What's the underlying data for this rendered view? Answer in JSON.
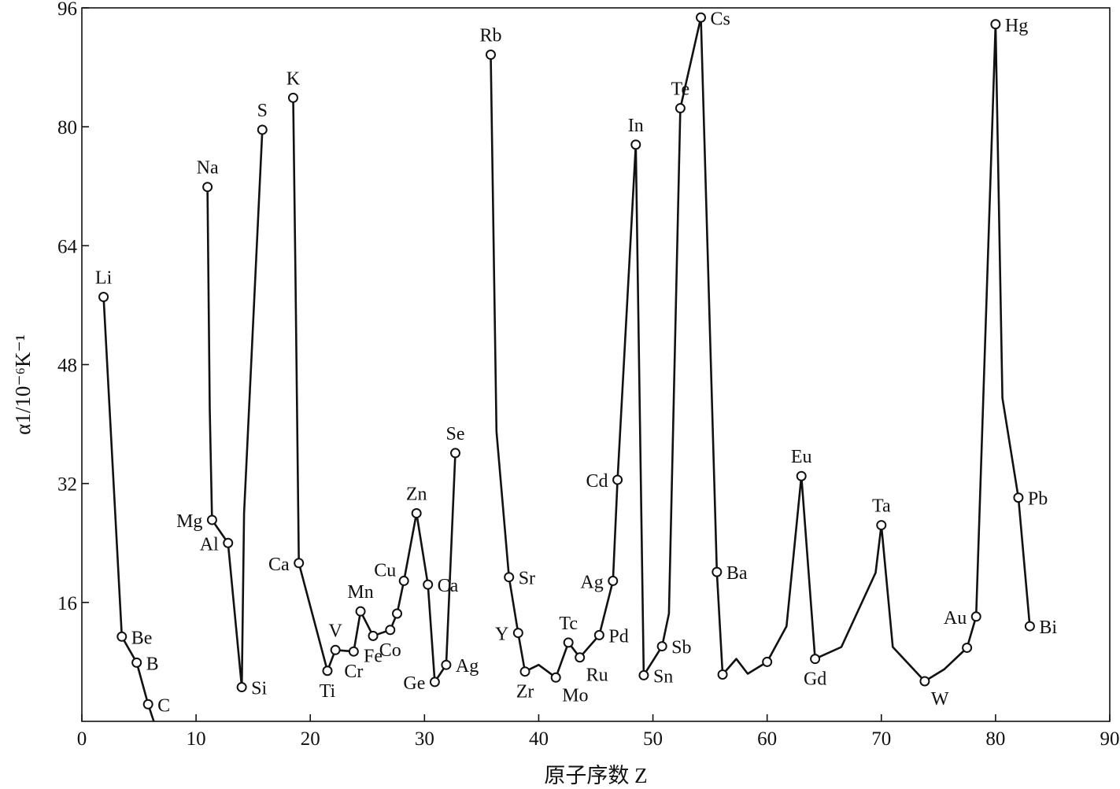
{
  "chart_data": {
    "type": "line",
    "xlabel": "原子序数 Z",
    "ylabel": "α1/10⁻⁶K⁻¹",
    "xlim": [
      0,
      90
    ],
    "ylim": [
      0,
      96
    ],
    "xticks": [
      0,
      10,
      20,
      30,
      40,
      50,
      60,
      70,
      80,
      90
    ],
    "yticks": [
      16,
      32,
      48,
      64,
      80,
      96
    ],
    "grid": false,
    "series": [
      {
        "points": [
          {
            "x": 1.9,
            "y": 57.1,
            "label": "Li",
            "marker": true
          },
          {
            "x": 3.5,
            "y": 11.4,
            "label": "Be",
            "marker": true
          },
          {
            "x": 4.8,
            "y": 7.9,
            "label": "B",
            "marker": true
          },
          {
            "x": 5.8,
            "y": 2.3,
            "label": "C",
            "marker": true
          },
          {
            "x": 6.3,
            "y": 0
          }
        ]
      },
      {
        "points": [
          {
            "x": 11.0,
            "y": 71.9,
            "label": "Na",
            "marker": true
          },
          {
            "x": 11.2,
            "y": 42.0
          },
          {
            "x": 11.4,
            "y": 27.1,
            "label": "Mg",
            "marker": true
          },
          {
            "x": 12.8,
            "y": 24.0,
            "label": "Al",
            "marker": true
          },
          {
            "x": 14.0,
            "y": 4.6,
            "label": "Si",
            "marker": true
          },
          {
            "x": 14.2,
            "y": 28.0
          },
          {
            "x": 15.8,
            "y": 79.6,
            "label": "S",
            "marker": true
          }
        ]
      },
      {
        "points": [
          {
            "x": 18.5,
            "y": 83.9,
            "label": "K",
            "marker": true
          },
          {
            "x": 18.7,
            "y": 60.0
          },
          {
            "x": 19.0,
            "y": 21.3,
            "label": "Ca",
            "marker": true
          },
          {
            "x": 21.5,
            "y": 6.8,
            "label": "Ti",
            "marker": true
          },
          {
            "x": 22.2,
            "y": 9.6,
            "label": "V",
            "marker": true
          },
          {
            "x": 23.8,
            "y": 9.4,
            "label": "Cr",
            "marker": true
          },
          {
            "x": 24.4,
            "y": 14.8,
            "label": "Mn",
            "marker": true
          },
          {
            "x": 25.5,
            "y": 11.5,
            "label": "Fe",
            "marker": true
          },
          {
            "x": 27.0,
            "y": 12.3,
            "label": "Co",
            "marker": true
          },
          {
            "x": 27.6,
            "y": 14.5,
            "label": "Co",
            "marker": true
          },
          {
            "x": 28.2,
            "y": 18.9,
            "label": "Cu",
            "marker": true
          },
          {
            "x": 29.3,
            "y": 28.0,
            "label": "Zn",
            "marker": true
          },
          {
            "x": 30.3,
            "y": 18.4,
            "label": "Ca",
            "marker": true
          },
          {
            "x": 30.9,
            "y": 5.3,
            "label": "Ge",
            "marker": true
          },
          {
            "x": 31.9,
            "y": 7.6,
            "label": "Ag",
            "marker": true
          },
          {
            "x": 32.7,
            "y": 36.1,
            "label": "Se",
            "marker": true
          }
        ]
      },
      {
        "points": [
          {
            "x": 35.8,
            "y": 89.7,
            "label": "Rb",
            "marker": true
          },
          {
            "x": 36.3,
            "y": 39.0
          },
          {
            "x": 37.4,
            "y": 19.4,
            "label": "Sr",
            "marker": true
          },
          {
            "x": 38.2,
            "y": 11.9,
            "label": "Y",
            "marker": true
          },
          {
            "x": 38.8,
            "y": 6.7,
            "label": "Zr",
            "marker": true
          },
          {
            "x": 40.0,
            "y": 7.6
          },
          {
            "x": 41.5,
            "y": 5.9,
            "label": "Mo",
            "marker": true
          },
          {
            "x": 42.6,
            "y": 10.6,
            "label": "Tc",
            "marker": true
          },
          {
            "x": 43.6,
            "y": 8.6,
            "label": "Ru",
            "marker": true
          },
          {
            "x": 45.3,
            "y": 11.6,
            "label": "Pd",
            "marker": true
          },
          {
            "x": 46.5,
            "y": 18.9,
            "label": "Ag",
            "marker": true
          },
          {
            "x": 46.9,
            "y": 32.5,
            "label": "Cd",
            "marker": true
          },
          {
            "x": 48.5,
            "y": 77.6,
            "label": "In",
            "marker": true
          },
          {
            "x": 49.2,
            "y": 6.2,
            "label": "Sn",
            "marker": true
          },
          {
            "x": 50.8,
            "y": 10.1,
            "label": "Sb",
            "marker": true
          },
          {
            "x": 51.4,
            "y": 14.5
          },
          {
            "x": 52.4,
            "y": 82.5,
            "label": "Te",
            "marker": true
          },
          {
            "x": 54.2,
            "y": 94.7,
            "label": "Cs",
            "marker": true
          },
          {
            "x": 55.6,
            "y": 20.1,
            "label": "Ba",
            "marker": true
          },
          {
            "x": 56.1,
            "y": 6.3,
            "label": "Ba",
            "marker": true
          },
          {
            "x": 57.3,
            "y": 8.4
          },
          {
            "x": 58.3,
            "y": 6.4
          },
          {
            "x": 60.0,
            "y": 8.0,
            "label": "Gd",
            "marker": true
          },
          {
            "x": 61.7,
            "y": 12.8
          },
          {
            "x": 63.0,
            "y": 33.0,
            "label": "Eu",
            "marker": true
          },
          {
            "x": 64.2,
            "y": 8.4,
            "label": "Gd",
            "marker": true
          },
          {
            "x": 66.5,
            "y": 10.0
          },
          {
            "x": 69.5,
            "y": 20.0
          },
          {
            "x": 70.0,
            "y": 26.4,
            "label": "Ta",
            "marker": true
          },
          {
            "x": 71.0,
            "y": 10.0
          },
          {
            "x": 73.8,
            "y": 5.4,
            "label": "W",
            "marker": true
          },
          {
            "x": 75.5,
            "y": 7.0
          },
          {
            "x": 77.5,
            "y": 9.9,
            "label": "W",
            "marker": true
          },
          {
            "x": 78.3,
            "y": 14.1,
            "label": "Au",
            "marker": true
          },
          {
            "x": 80.0,
            "y": 93.8,
            "label": "Hg",
            "marker": true
          },
          {
            "x": 80.6,
            "y": 43.5
          },
          {
            "x": 82.0,
            "y": 30.1,
            "label": "Pb",
            "marker": true
          },
          {
            "x": 83.0,
            "y": 12.8,
            "label": "Bi",
            "marker": true
          }
        ]
      }
    ],
    "labels": [
      {
        "text": "Li",
        "x": 1.9,
        "y": 57.1,
        "pos": "above"
      },
      {
        "text": "Be",
        "x": 3.5,
        "y": 11.4,
        "pos": "right"
      },
      {
        "text": "B",
        "x": 4.8,
        "y": 7.9,
        "pos": "right"
      },
      {
        "text": "C",
        "x": 5.8,
        "y": 2.3,
        "pos": "right"
      },
      {
        "text": "Na",
        "x": 11.0,
        "y": 71.9,
        "pos": "above"
      },
      {
        "text": "Mg",
        "x": 11.4,
        "y": 27.1,
        "pos": "left"
      },
      {
        "text": "Al",
        "x": 12.8,
        "y": 24.0,
        "pos": "left"
      },
      {
        "text": "Si",
        "x": 14.0,
        "y": 4.6,
        "pos": "right"
      },
      {
        "text": "S",
        "x": 15.8,
        "y": 79.6,
        "pos": "above"
      },
      {
        "text": "K",
        "x": 18.5,
        "y": 83.9,
        "pos": "above"
      },
      {
        "text": "Ca",
        "x": 19.0,
        "y": 21.3,
        "pos": "left"
      },
      {
        "text": "Ti",
        "x": 21.5,
        "y": 6.8,
        "pos": "below"
      },
      {
        "text": "V",
        "x": 22.2,
        "y": 9.6,
        "pos": "above"
      },
      {
        "text": "Cr",
        "x": 23.8,
        "y": 9.4,
        "pos": "below"
      },
      {
        "text": "Mn",
        "x": 24.4,
        "y": 14.8,
        "pos": "above"
      },
      {
        "text": "Fe",
        "x": 25.5,
        "y": 11.5,
        "pos": "below"
      },
      {
        "text": "Co",
        "x": 27.0,
        "y": 12.3,
        "pos": "below"
      },
      {
        "text": "Cu",
        "x": 28.2,
        "y": 18.9,
        "pos": "upleft"
      },
      {
        "text": "Zn",
        "x": 29.3,
        "y": 28.0,
        "pos": "above"
      },
      {
        "text": "Ca",
        "x": 30.3,
        "y": 18.4,
        "pos": "right"
      },
      {
        "text": "Ge",
        "x": 30.9,
        "y": 5.3,
        "pos": "left"
      },
      {
        "text": "Ag",
        "x": 31.9,
        "y": 7.6,
        "pos": "right"
      },
      {
        "text": "Se",
        "x": 32.7,
        "y": 36.1,
        "pos": "above"
      },
      {
        "text": "Rb",
        "x": 35.8,
        "y": 89.7,
        "pos": "above"
      },
      {
        "text": "Sr",
        "x": 37.4,
        "y": 19.4,
        "pos": "right"
      },
      {
        "text": "Y",
        "x": 38.2,
        "y": 11.9,
        "pos": "left"
      },
      {
        "text": "Zr",
        "x": 38.8,
        "y": 6.7,
        "pos": "below"
      },
      {
        "text": "Mo",
        "x": 41.5,
        "y": 5.9,
        "pos": "belowright"
      },
      {
        "text": "Tc",
        "x": 42.6,
        "y": 10.6,
        "pos": "above"
      },
      {
        "text": "Ru",
        "x": 43.6,
        "y": 8.6,
        "pos": "belowright"
      },
      {
        "text": "Pd",
        "x": 45.3,
        "y": 11.6,
        "pos": "right"
      },
      {
        "text": "Ag",
        "x": 46.5,
        "y": 18.9,
        "pos": "left"
      },
      {
        "text": "Cd",
        "x": 46.9,
        "y": 32.5,
        "pos": "left"
      },
      {
        "text": "In",
        "x": 48.5,
        "y": 77.6,
        "pos": "above"
      },
      {
        "text": "Sn",
        "x": 49.2,
        "y": 6.2,
        "pos": "right"
      },
      {
        "text": "Sb",
        "x": 50.8,
        "y": 10.1,
        "pos": "right"
      },
      {
        "text": "Te",
        "x": 52.4,
        "y": 82.5,
        "pos": "above"
      },
      {
        "text": "Cs",
        "x": 54.2,
        "y": 94.7,
        "pos": "right"
      },
      {
        "text": "Ba",
        "x": 55.6,
        "y": 20.1,
        "pos": "right"
      },
      {
        "text": "Eu",
        "x": 63.0,
        "y": 33.0,
        "pos": "above"
      },
      {
        "text": "Gd",
        "x": 64.2,
        "y": 8.4,
        "pos": "below"
      },
      {
        "text": "Ta",
        "x": 70.0,
        "y": 26.4,
        "pos": "above"
      },
      {
        "text": "W",
        "x": 73.8,
        "y": 5.4,
        "pos": "belowright"
      },
      {
        "text": "Au",
        "x": 78.3,
        "y": 14.1,
        "pos": "left"
      },
      {
        "text": "Hg",
        "x": 80.0,
        "y": 93.8,
        "pos": "right"
      },
      {
        "text": "Pb",
        "x": 82.0,
        "y": 30.1,
        "pos": "right"
      },
      {
        "text": "Bi",
        "x": 83.0,
        "y": 12.8,
        "pos": "right"
      }
    ]
  }
}
